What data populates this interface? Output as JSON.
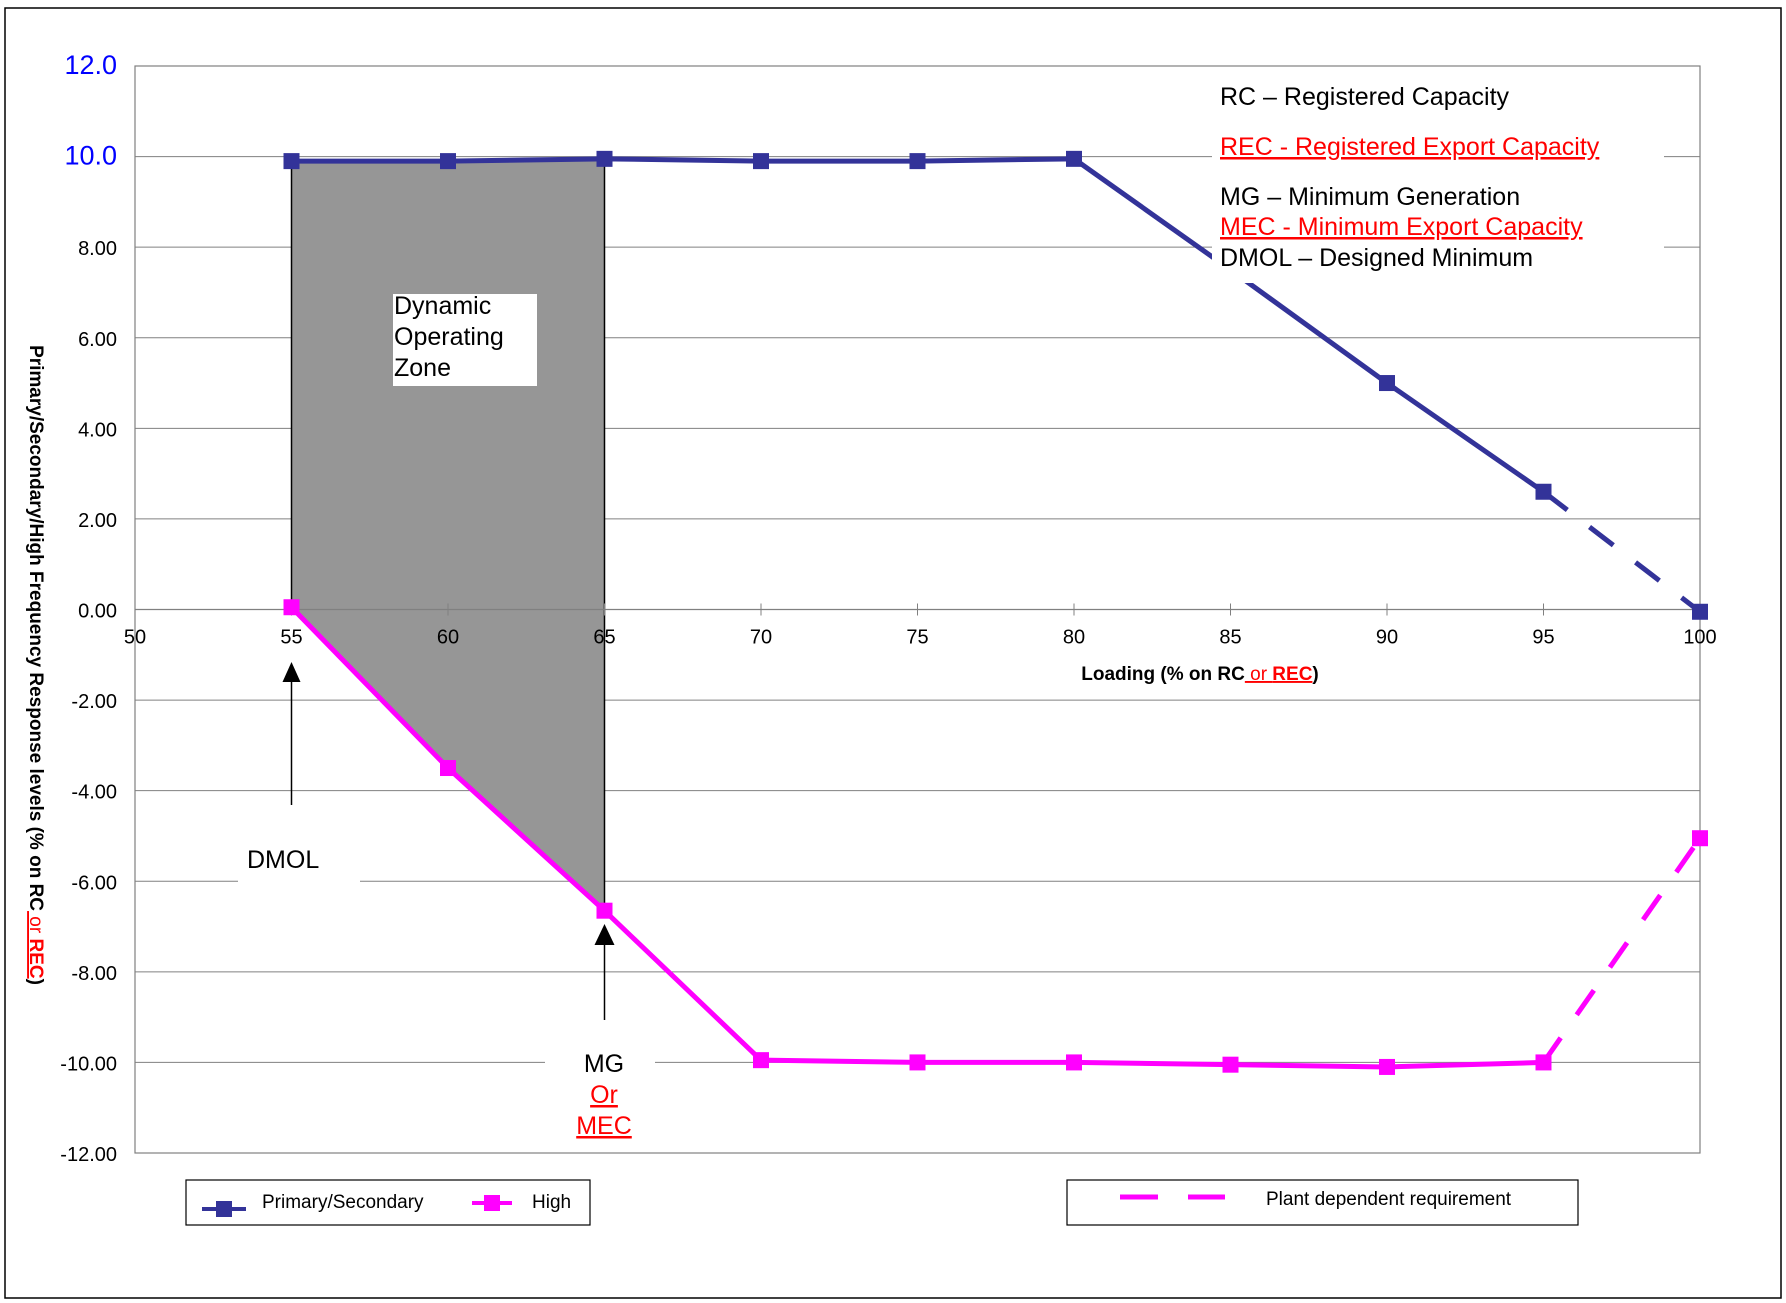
{
  "chart_data": {
    "type": "line",
    "title": "",
    "xlabel_parts": [
      "Loading (% on RC",
      " or ",
      "REC",
      ")"
    ],
    "ylabel_parts": [
      "Primary/Secondary/High Frequency Response levels (% on RC",
      " or ",
      "REC",
      ")"
    ],
    "xlim": [
      50,
      100
    ],
    "ylim": [
      -12,
      12
    ],
    "x_ticks": [
      "50",
      "55",
      "60",
      "65",
      "70",
      "75",
      "80",
      "85",
      "90",
      "95",
      "100"
    ],
    "y_ticks": [
      {
        "value": 12,
        "label": "12.0",
        "highlight": true
      },
      {
        "value": 10,
        "label": "10.0",
        "highlight": true
      },
      {
        "value": 8,
        "label": "8.00"
      },
      {
        "value": 6,
        "label": "6.00"
      },
      {
        "value": 4,
        "label": "4.00"
      },
      {
        "value": 2,
        "label": "2.00"
      },
      {
        "value": 0,
        "label": "0.00"
      },
      {
        "value": -2,
        "label": "-2.00"
      },
      {
        "value": -4,
        "label": "-4.00"
      },
      {
        "value": -6,
        "label": "-6.00"
      },
      {
        "value": -8,
        "label": "-8.00"
      },
      {
        "value": -10,
        "label": "-10.00"
      },
      {
        "value": -12,
        "label": "-12.00"
      }
    ],
    "grid": true,
    "series": [
      {
        "name": "Primary/Secondary",
        "color": "#333399",
        "marker": "square",
        "x": [
          55,
          60,
          65,
          70,
          75,
          80,
          85,
          90,
          95,
          100
        ],
        "y": [
          9.9,
          9.9,
          9.95,
          9.9,
          9.9,
          9.95,
          7.5,
          5.0,
          2.6,
          -0.05
        ],
        "dashed_from_x": 95
      },
      {
        "name": "High",
        "color": "#ff00ff",
        "marker": "square",
        "x": [
          55,
          60,
          65,
          70,
          75,
          80,
          85,
          90,
          95,
          100
        ],
        "y": [
          0.05,
          -3.5,
          -6.65,
          -9.95,
          -10.0,
          -10.0,
          -10.05,
          -10.1,
          -10.0,
          -5.05
        ],
        "dashed_from_x": 95
      }
    ],
    "zone": {
      "label_lines": [
        "Dynamic",
        "Operating",
        "Zone"
      ],
      "fill": "#969696",
      "x_from": 55,
      "x_to": 65
    },
    "abbreviations": [
      {
        "text": "RC  –    Registered Capacity",
        "red": false
      },
      {
        "text": "REC - Registered Export Capacity",
        "red": true
      },
      {
        "text": "MG  –   Minimum Generation",
        "red": false
      },
      {
        "text": "MEC - Minimum Export Capacity",
        "red": true
      },
      {
        "text": "DMOL – Designed Minimum",
        "red": false
      }
    ],
    "markers": {
      "dmol": {
        "label": "DMOL",
        "x": 55
      },
      "mg": {
        "label": "MG",
        "or_label": "Or",
        "mec_label": "MEC",
        "x": 65
      }
    },
    "legend": {
      "items": [
        "Primary/Secondary",
        "High"
      ],
      "plant_dependent": "Plant dependent requirement",
      "placement": "bottom"
    },
    "colors": {
      "primary": "#333399",
      "high": "#ff00ff",
      "red_text": "#ff0000",
      "tick_highlight": "#0000ff"
    }
  }
}
